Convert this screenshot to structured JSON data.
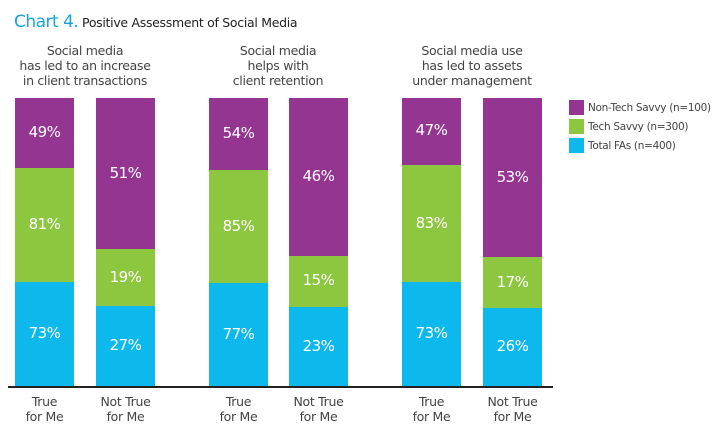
{
  "chart_data": {
    "type": "bar",
    "stacked": true,
    "title_lead": "Chart 4.",
    "title": "Positive Assessment of Social Media",
    "legend_position": "right",
    "legend": [
      {
        "name": "Non-Tech Savvy (n=100)",
        "color": "#953592"
      },
      {
        "name": "Tech Savvy (n=300)",
        "color": "#8dc63f"
      },
      {
        "name": "Total FAs (n=400)",
        "color": "#0db9ec"
      }
    ],
    "groups": [
      {
        "label_lines": [
          "Social media",
          "has led to an increase",
          "in client transactions"
        ],
        "bars": [
          {
            "category_lines": [
              "True",
              "for Me"
            ],
            "values": {
              "non_tech": 49,
              "tech": 81,
              "total": 73
            }
          },
          {
            "category_lines": [
              "Not True",
              "for Me"
            ],
            "values": {
              "non_tech": 51,
              "tech": 19,
              "total": 27
            }
          }
        ]
      },
      {
        "label_lines": [
          "Social media",
          "helps with",
          "client retention"
        ],
        "bars": [
          {
            "category_lines": [
              "True",
              "for Me"
            ],
            "values": {
              "non_tech": 54,
              "tech": 85,
              "total": 77
            }
          },
          {
            "category_lines": [
              "Not True",
              "for Me"
            ],
            "values": {
              "non_tech": 46,
              "tech": 15,
              "total": 23
            }
          }
        ]
      },
      {
        "label_lines": [
          "Social media use",
          "has led to assets",
          "under management"
        ],
        "bars": [
          {
            "category_lines": [
              "True",
              "for Me"
            ],
            "values": {
              "non_tech": 47,
              "tech": 83,
              "total": 73
            }
          },
          {
            "category_lines": [
              "Not True",
              "for Me"
            ],
            "values": {
              "non_tech": 53,
              "tech": 17,
              "total": 26
            }
          }
        ]
      }
    ],
    "series_order": [
      "non_tech",
      "tech",
      "total"
    ],
    "value_suffix": "%"
  }
}
